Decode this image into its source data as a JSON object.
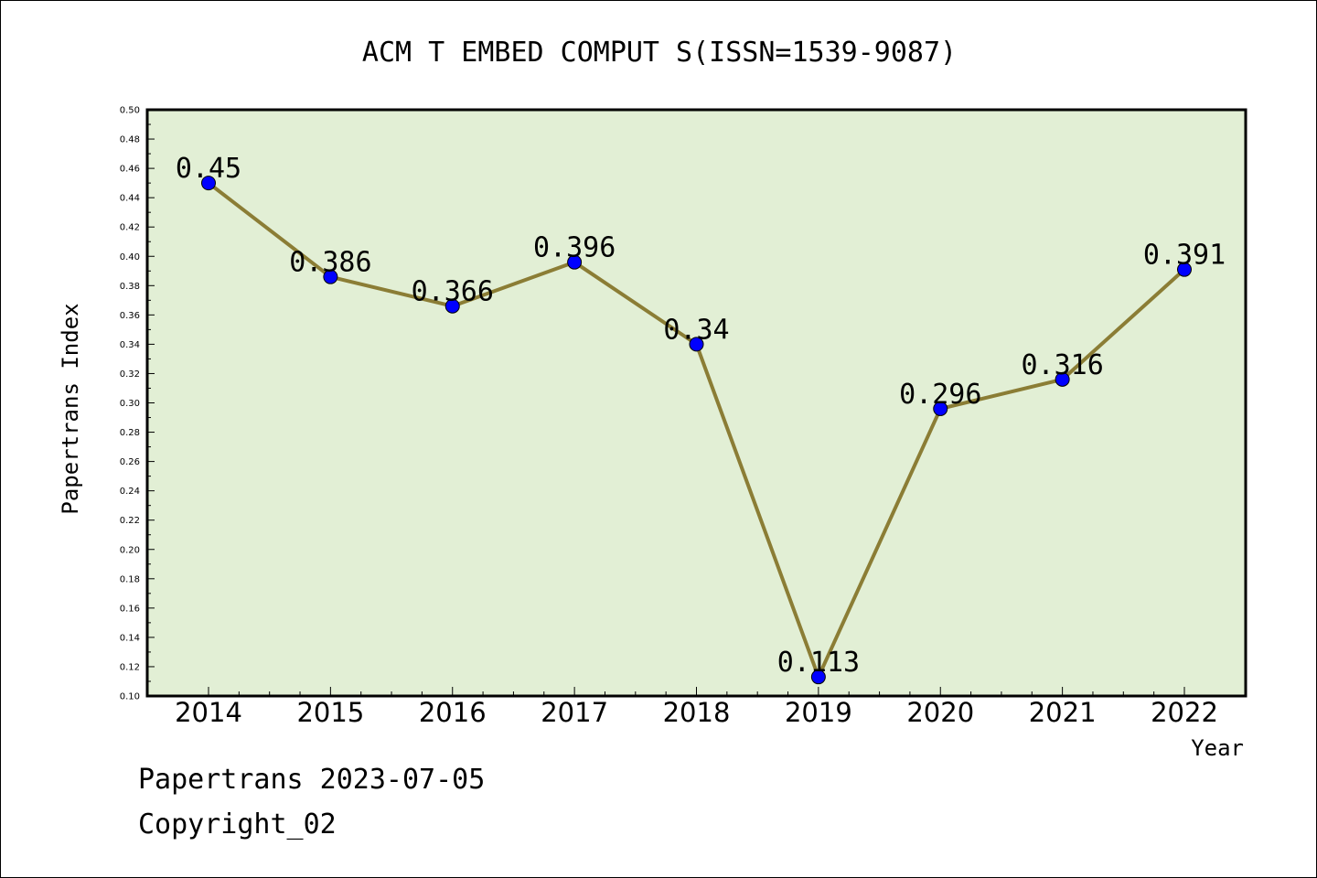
{
  "chart_data": {
    "type": "line",
    "title": "ACM T EMBED COMPUT S(ISSN=1539-9087)",
    "xlabel": "Year",
    "ylabel": "Papertrans Index",
    "categories": [
      "2014",
      "2015",
      "2016",
      "2017",
      "2018",
      "2019",
      "2020",
      "2021",
      "2022"
    ],
    "series": [
      {
        "values": [
          0.45,
          0.386,
          0.366,
          0.396,
          0.34,
          0.113,
          0.296,
          0.316,
          0.391
        ]
      }
    ],
    "data_labels": [
      "0.45",
      "0.386",
      "0.366",
      "0.396",
      "0.34",
      "0.113",
      "0.296",
      "0.316",
      "0.391"
    ],
    "ylim": [
      0.1,
      0.5
    ],
    "yticks": [
      "0.10",
      "0.12",
      "0.14",
      "0.16",
      "0.18",
      "0.20",
      "0.22",
      "0.24",
      "0.26",
      "0.28",
      "0.30",
      "0.32",
      "0.34",
      "0.36",
      "0.38",
      "0.40",
      "0.42",
      "0.44",
      "0.46",
      "0.48",
      "0.50"
    ],
    "grid": false,
    "colors": {
      "plot_background": "#e2efd5",
      "line": "#8b7d35",
      "marker": "#0000ff",
      "frame": "#000000"
    }
  },
  "footer": {
    "line1": "Papertrans 2023-07-05",
    "line2": "Copyright_02"
  }
}
